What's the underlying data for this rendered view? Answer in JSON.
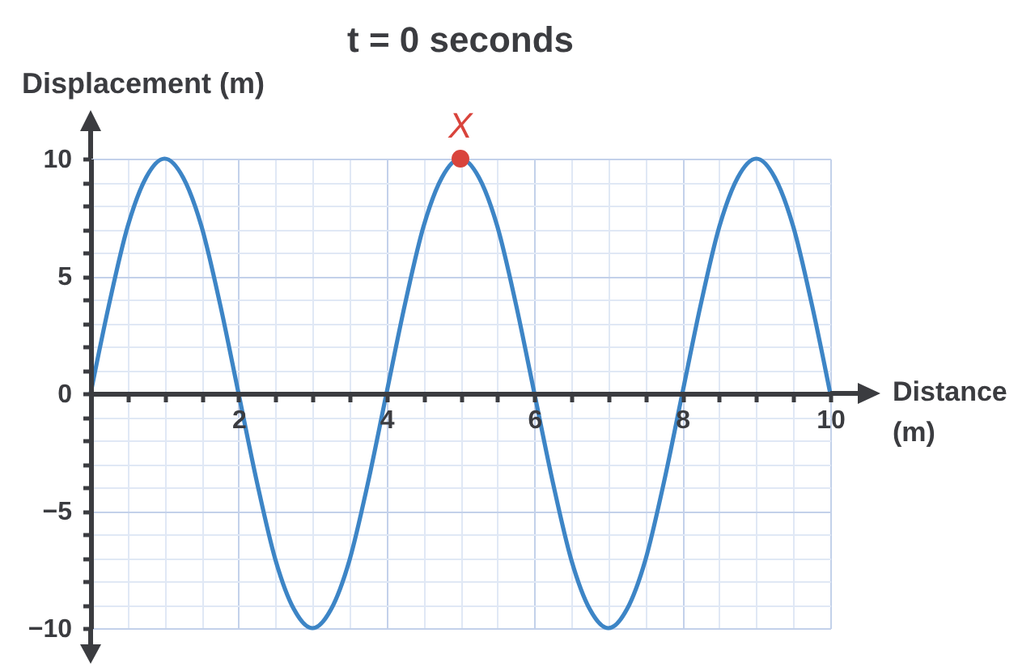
{
  "chart_data": {
    "type": "line",
    "title": "t = 0 seconds",
    "xlabel": "Distance (m)",
    "ylabel": "Displacement (m)",
    "series": [
      {
        "type": "line",
        "color": "#3d85c6",
        "x": [
          0,
          0.25,
          0.5,
          0.75,
          1,
          1.25,
          1.5,
          1.75,
          2,
          2.25,
          2.5,
          2.75,
          3,
          3.25,
          3.5,
          3.75,
          4,
          4.25,
          4.5,
          4.75,
          5,
          5.25,
          5.5,
          5.75,
          6,
          6.25,
          6.5,
          6.75,
          7,
          7.25,
          7.5,
          7.75,
          8,
          8.25,
          8.5,
          8.75,
          9,
          9.25,
          9.5,
          9.75,
          10
        ],
        "values": [
          0,
          3.8,
          7.1,
          9.2,
          10,
          9.2,
          7.1,
          3.8,
          0,
          -3.8,
          -7.1,
          -9.2,
          -10,
          -9.2,
          -7.1,
          -3.8,
          0,
          3.8,
          7.1,
          9.2,
          10,
          9.2,
          7.1,
          3.8,
          0,
          -3.8,
          -7.1,
          -9.2,
          -10,
          -9.2,
          -7.1,
          -3.8,
          0,
          3.8,
          7.1,
          9.2,
          10,
          9.2,
          7.1,
          3.8,
          0
        ]
      },
      {
        "type": "scatter",
        "color": "#d9443c",
        "x": [
          5
        ],
        "values": [
          10
        ]
      }
    ],
    "annotations": [
      {
        "text": "X",
        "x": 5,
        "y": 10
      }
    ],
    "xlim": [
      0,
      10
    ],
    "ylim": [
      -10,
      10
    ],
    "xticks": [
      {
        "value": 0,
        "label": null
      },
      {
        "value": 0.5,
        "label": null
      },
      {
        "value": 1,
        "label": null
      },
      {
        "value": 1.5,
        "label": null
      },
      2,
      {
        "value": 2.5,
        "label": null
      },
      {
        "value": 3,
        "label": null
      },
      {
        "value": 3.5,
        "label": null
      },
      4,
      {
        "value": 4.5,
        "label": null
      },
      {
        "value": 5,
        "label": null
      },
      {
        "value": 5.5,
        "label": null
      },
      6,
      {
        "value": 6.5,
        "label": null
      },
      {
        "value": 7,
        "label": null
      },
      {
        "value": 7.5,
        "label": null
      },
      8,
      {
        "value": 8.5,
        "label": null
      },
      {
        "value": 9,
        "label": null
      },
      {
        "value": 9.5,
        "label": null
      },
      10
    ],
    "yticks": [
      {
        "value": -10,
        "label": "−10"
      },
      {
        "value": -9,
        "label": null
      },
      {
        "value": -8,
        "label": null
      },
      {
        "value": -7,
        "label": null
      },
      {
        "value": -6,
        "label": null
      },
      {
        "value": -5,
        "label": "−5"
      },
      {
        "value": -4,
        "label": null
      },
      {
        "value": -3,
        "label": null
      },
      {
        "value": -2,
        "label": null
      },
      {
        "value": -1,
        "label": null
      },
      0,
      {
        "value": 1,
        "label": null
      },
      {
        "value": 2,
        "label": null
      },
      {
        "value": 3,
        "label": null
      },
      {
        "value": 4,
        "label": null
      },
      5,
      {
        "value": 6,
        "label": null
      },
      {
        "value": 7,
        "label": null
      },
      {
        "value": 8,
        "label": null
      },
      {
        "value": 9,
        "label": null
      },
      10
    ],
    "grid": true
  }
}
